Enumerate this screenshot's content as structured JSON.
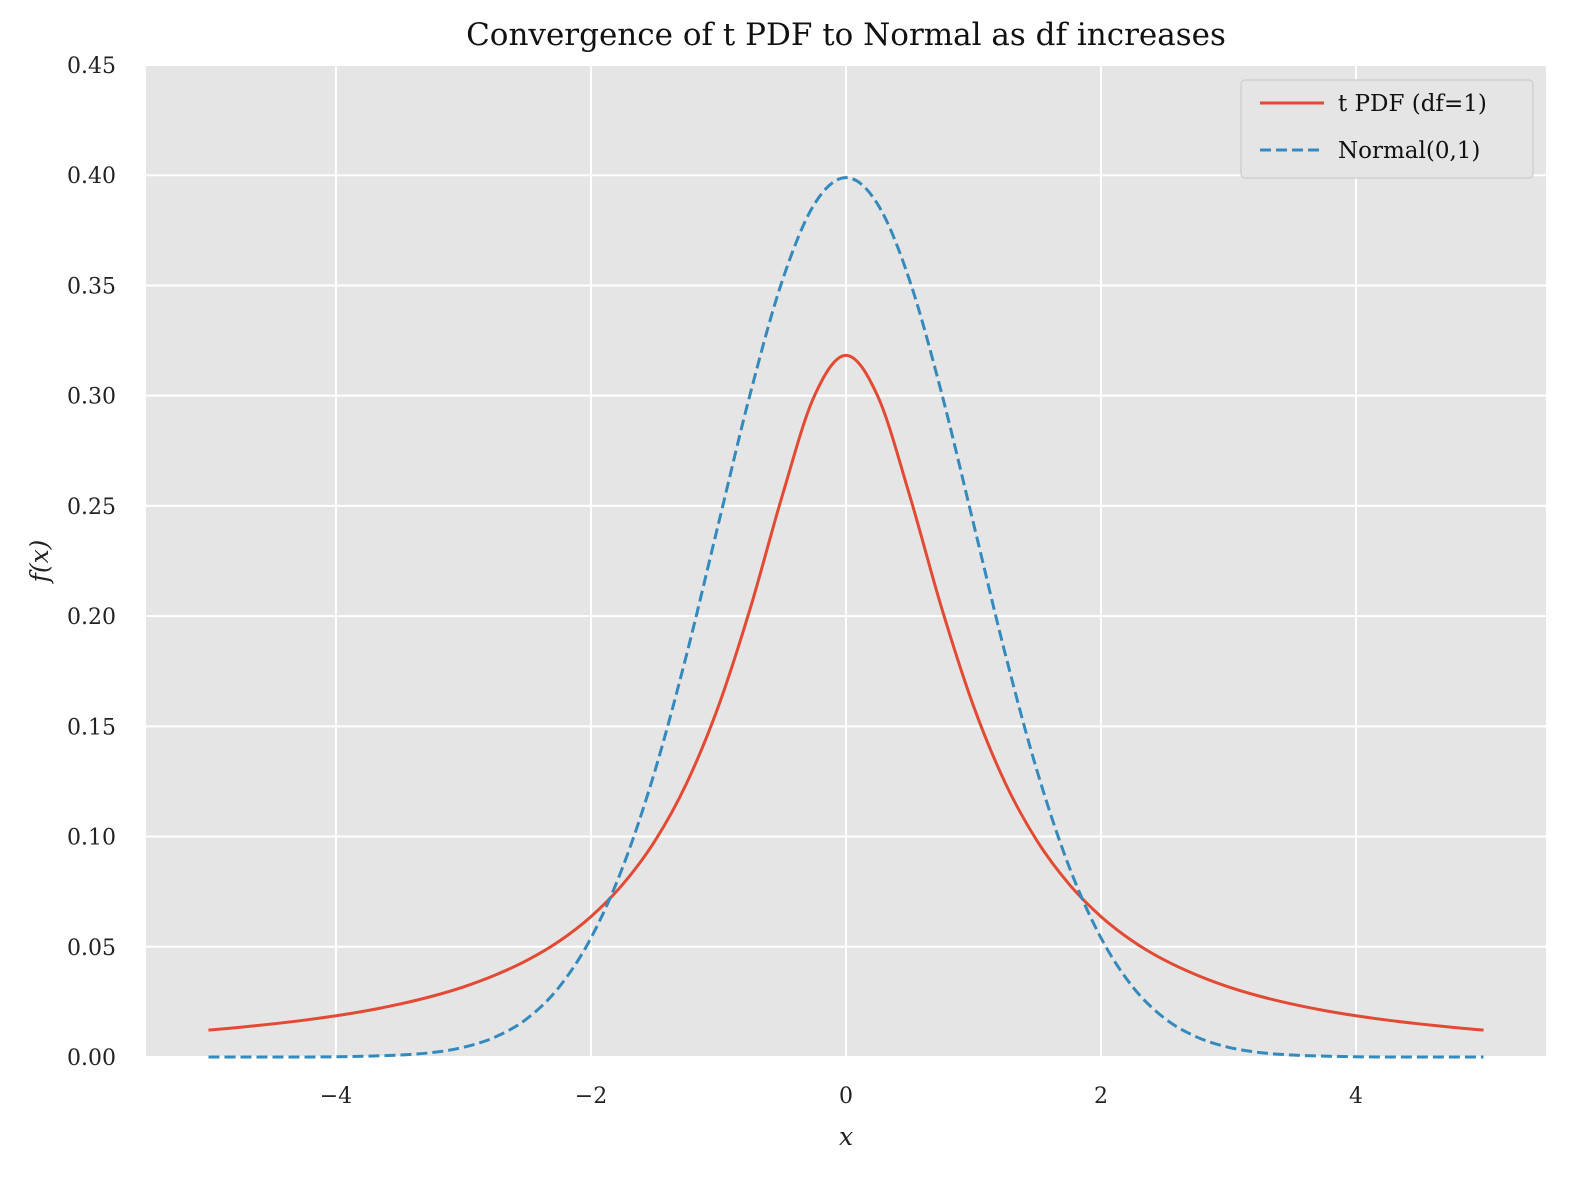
{
  "chart_data": {
    "type": "line",
    "title": "Convergence of t PDF to Normal as df increases",
    "xlabel": "x",
    "ylabel": "f(x)",
    "xlim": [
      -5.49,
      5.49
    ],
    "ylim": [
      0,
      0.45
    ],
    "xticks": [
      -4,
      -2,
      0,
      2,
      4
    ],
    "xtick_labels": [
      "−4",
      "−2",
      "0",
      "2",
      "4"
    ],
    "yticks": [
      0,
      0.05,
      0.1,
      0.15,
      0.2,
      0.25,
      0.3,
      0.35,
      0.4,
      0.45
    ],
    "ytick_labels": [
      "0.00",
      "0.05",
      "0.10",
      "0.15",
      "0.20",
      "0.25",
      "0.30",
      "0.35",
      "0.40",
      "0.45"
    ],
    "grid": true,
    "legend_position": "top-right",
    "x": [
      -5,
      -4.75,
      -4.5,
      -4.25,
      -4,
      -3.75,
      -3.5,
      -3.25,
      -3,
      -2.75,
      -2.5,
      -2.25,
      -2,
      -1.75,
      -1.5,
      -1.25,
      -1,
      -0.75,
      -0.5,
      -0.25,
      0,
      0.25,
      0.5,
      0.75,
      1,
      1.25,
      1.5,
      1.75,
      2,
      2.25,
      2.5,
      2.75,
      3,
      3.25,
      3.5,
      3.75,
      4,
      4.25,
      4.5,
      4.75,
      5
    ],
    "series": [
      {
        "name": "t PDF (df=1)",
        "color": "#e24a33",
        "style": "solid",
        "values": [
          0.0122,
          0.0135,
          0.015,
          0.0167,
          0.0187,
          0.0211,
          0.024,
          0.0275,
          0.0318,
          0.0372,
          0.0439,
          0.0525,
          0.0637,
          0.0784,
          0.0979,
          0.1242,
          0.1592,
          0.2037,
          0.2546,
          0.2996,
          0.3183,
          0.2996,
          0.2546,
          0.2037,
          0.1592,
          0.1242,
          0.0979,
          0.0784,
          0.0637,
          0.0525,
          0.0439,
          0.0372,
          0.0318,
          0.0275,
          0.024,
          0.0211,
          0.0187,
          0.0167,
          0.015,
          0.0135,
          0.0122
        ]
      },
      {
        "name": "Normal(0,1)",
        "color": "#348abd",
        "style": "dashed",
        "values": [
          0.0,
          0.0,
          0.0,
          0.0,
          0.0001,
          0.0004,
          0.0009,
          0.002,
          0.0044,
          0.0091,
          0.0175,
          0.0317,
          0.054,
          0.0863,
          0.1295,
          0.1826,
          0.242,
          0.3011,
          0.3521,
          0.3867,
          0.3989,
          0.3867,
          0.3521,
          0.3011,
          0.242,
          0.1826,
          0.1295,
          0.0863,
          0.054,
          0.0317,
          0.0175,
          0.0091,
          0.0044,
          0.002,
          0.0009,
          0.0004,
          0.0001,
          0.0,
          0.0,
          0.0,
          0.0
        ]
      }
    ]
  }
}
